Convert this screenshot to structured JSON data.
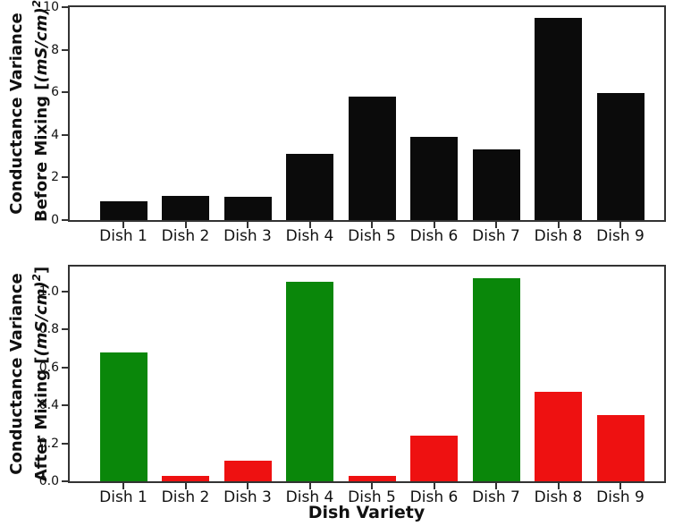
{
  "figure": {
    "background": "#ffffff",
    "spine_color": "#333333"
  },
  "chart_data": [
    {
      "type": "bar",
      "title": "",
      "categories": [
        "Dish 1",
        "Dish 2",
        "Dish 3",
        "Dish 4",
        "Dish 5",
        "Dish 6",
        "Dish 7",
        "Dish 8",
        "Dish 9"
      ],
      "values": [
        0.9,
        1.15,
        1.1,
        3.1,
        5.8,
        3.9,
        3.3,
        9.5,
        5.95
      ],
      "bar_colors": [
        "#0b0b0b",
        "#0b0b0b",
        "#0b0b0b",
        "#0b0b0b",
        "#0b0b0b",
        "#0b0b0b",
        "#0b0b0b",
        "#0b0b0b",
        "#0b0b0b"
      ],
      "ylabel": "Conductance Variance Before Mixing [(mS/cm)²]",
      "ylabel_lines": {
        "line1": "Conductance Variance",
        "line2_prefix": "Before Mixing [",
        "line2_units": "(mS/cm)",
        "line2_sup": "2",
        "line2_suffix": "]"
      },
      "xlabel": "",
      "yticks": [
        "0",
        "2",
        "4",
        "6",
        "8",
        "10"
      ],
      "ytick_values": [
        0,
        2,
        4,
        6,
        8,
        10
      ],
      "ylim": [
        0,
        10
      ],
      "grid": false,
      "legend": null
    },
    {
      "type": "bar",
      "title": "",
      "categories": [
        "Dish 1",
        "Dish 2",
        "Dish 3",
        "Dish 4",
        "Dish 5",
        "Dish 6",
        "Dish 7",
        "Dish 8",
        "Dish 9"
      ],
      "values": [
        0.68,
        0.03,
        0.11,
        1.05,
        0.03,
        0.24,
        1.07,
        0.47,
        0.35
      ],
      "bar_colors": [
        "#0a870a",
        "#ee1111",
        "#ee1111",
        "#0a870a",
        "#ee1111",
        "#ee1111",
        "#0a870a",
        "#ee1111",
        "#ee1111"
      ],
      "ylabel": "Conductance Variance After Mixing [(mS/cm)²]",
      "ylabel_lines": {
        "line1": "Conductance Variance",
        "line2_prefix": "After Mixing [",
        "line2_units": "(mS/cm)",
        "line2_sup": "2",
        "line2_suffix": "]"
      },
      "xlabel": "Dish Variety",
      "yticks": [
        "0.0",
        "0.2",
        "0.4",
        "0.6",
        "0.8",
        "1.0"
      ],
      "ytick_values": [
        0,
        0.2,
        0.4,
        0.6,
        0.8,
        1.0
      ],
      "ylim": [
        0,
        1.13
      ],
      "grid": false,
      "legend": null
    }
  ]
}
